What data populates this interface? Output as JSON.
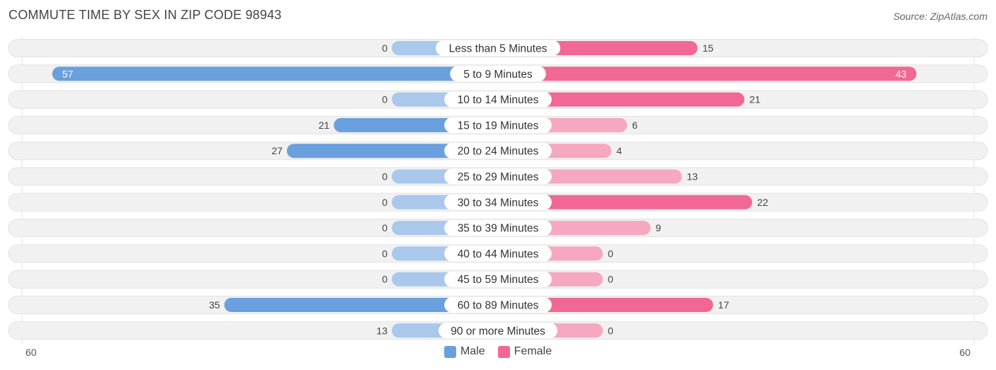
{
  "title": "COMMUTE TIME BY SEX IN ZIP CODE 98943",
  "source": "Source: ZipAtlas.com",
  "colors": {
    "male_strong": "#6aa0dd",
    "male_light": "#a9c8ec",
    "female_strong": "#f06893",
    "female_light": "#f5a8c0",
    "row_bg": "#f1f1f1"
  },
  "chart_data": {
    "type": "bar",
    "orientation": "horizontal-diverging",
    "categories": [
      "Less than 5 Minutes",
      "5 to 9 Minutes",
      "10 to 14 Minutes",
      "15 to 19 Minutes",
      "20 to 24 Minutes",
      "25 to 29 Minutes",
      "30 to 34 Minutes",
      "35 to 39 Minutes",
      "40 to 44 Minutes",
      "45 to 59 Minutes",
      "60 to 89 Minutes",
      "90 or more Minutes"
    ],
    "series": [
      {
        "name": "Male",
        "values": [
          0,
          57,
          0,
          21,
          27,
          0,
          0,
          0,
          0,
          0,
          35,
          13
        ]
      },
      {
        "name": "Female",
        "values": [
          15,
          43,
          21,
          6,
          4,
          13,
          22,
          9,
          0,
          0,
          17,
          0
        ]
      }
    ],
    "axis_max": 60,
    "axis_left_label": "60",
    "axis_right_label": "60",
    "legend": [
      "Male",
      "Female"
    ],
    "legend_position": "bottom-center"
  }
}
